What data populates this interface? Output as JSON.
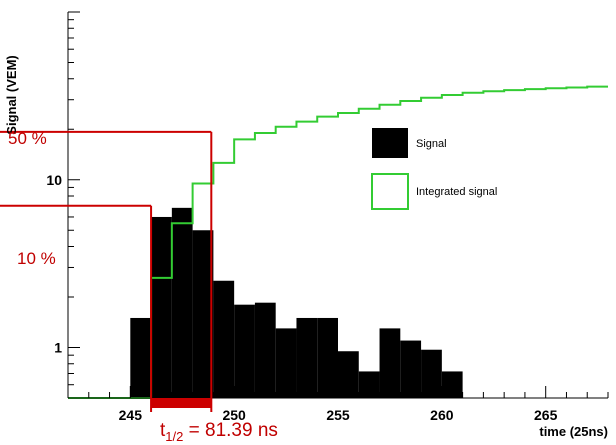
{
  "chart_data": {
    "type": "bar",
    "ylabel": "Signal (VEM)",
    "xlabel": "time (25ns)",
    "y_scale": "log",
    "xlim": [
      242,
      268
    ],
    "ylim": [
      0.5,
      100
    ],
    "x_ticks": [
      245,
      250,
      255,
      260,
      265
    ],
    "y_ticks": [
      1,
      10
    ],
    "x_tick_labels": [
      "245",
      "250",
      "255",
      "260",
      "265"
    ],
    "y_tick_labels": [
      "1",
      "10"
    ],
    "grid": false,
    "legend_placement": "center-right",
    "series": [
      {
        "name": "Signal",
        "style": "filled-histogram",
        "color": "#000000",
        "bin_edges": [
          245,
          246,
          247,
          248,
          249,
          250,
          251,
          252,
          253,
          254,
          255,
          256,
          257,
          258,
          259,
          260,
          261
        ],
        "values": [
          1.5,
          6.0,
          6.8,
          5.0,
          2.5,
          1.8,
          1.85,
          1.3,
          1.5,
          1.5,
          0.95,
          0.72,
          1.3,
          1.1,
          0.97,
          0.72
        ]
      },
      {
        "name": "Integrated signal",
        "style": "step-line",
        "color": "#33cc33",
        "bin_edges": [
          242,
          245,
          246,
          247,
          248,
          249,
          250,
          251,
          252,
          253,
          254,
          255,
          256,
          257,
          258,
          259,
          260,
          261,
          262,
          263,
          264,
          265,
          266,
          267,
          268
        ],
        "values": [
          0.5,
          0.5,
          2.6,
          5.5,
          9.5,
          12.6,
          17.4,
          19.0,
          20.7,
          22.2,
          23.8,
          25.0,
          26.5,
          28.0,
          29.5,
          30.8,
          32.0,
          33.0,
          33.7,
          34.2,
          34.7,
          35.1,
          35.5,
          35.9
        ]
      }
    ],
    "annotations": {
      "level_50_label": "50 %",
      "level_10_label": "10 %",
      "level_50_value": 19.3,
      "level_10_value": 7.0,
      "t10_x": 246.0,
      "t50_x": 248.9,
      "t_half_prefix": "t",
      "t_half_sub": "1/2",
      "t_half_value": " = 81.39 ns",
      "color": "#cc0000"
    }
  }
}
